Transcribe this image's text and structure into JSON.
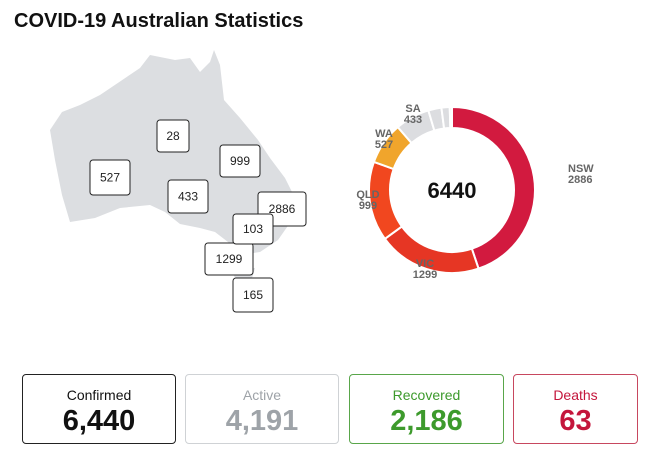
{
  "header": {
    "title": "COVID-19 Australian Statistics"
  },
  "chart_data": {
    "type": "pie",
    "donut": true,
    "total": 6440,
    "categories": [
      "NSW",
      "VIC",
      "QLD",
      "WA",
      "SA",
      null,
      null,
      null
    ],
    "values": [
      2886,
      1299,
      999,
      527,
      433,
      165,
      103,
      28
    ],
    "colors": [
      "#d21a3f",
      "#e63624",
      "#f1471f",
      "#f0a52c",
      "#dcdde0",
      "#dcdde0",
      "#dcdde0",
      "#dcdde0"
    ]
  },
  "stats": [
    {
      "label": "Confirmed",
      "value": "6,440",
      "color": "#111111",
      "border": "#222222"
    },
    {
      "label": "Active",
      "value": "4,191",
      "color": "#9ea3a8",
      "border": "#cfd2d5"
    },
    {
      "label": "Recovered",
      "value": "2,186",
      "color": "#3d9a2c",
      "border": "#59a64a"
    },
    {
      "label": "Deaths",
      "value": "63",
      "color": "#c4163c",
      "border": "#c7475f"
    }
  ]
}
